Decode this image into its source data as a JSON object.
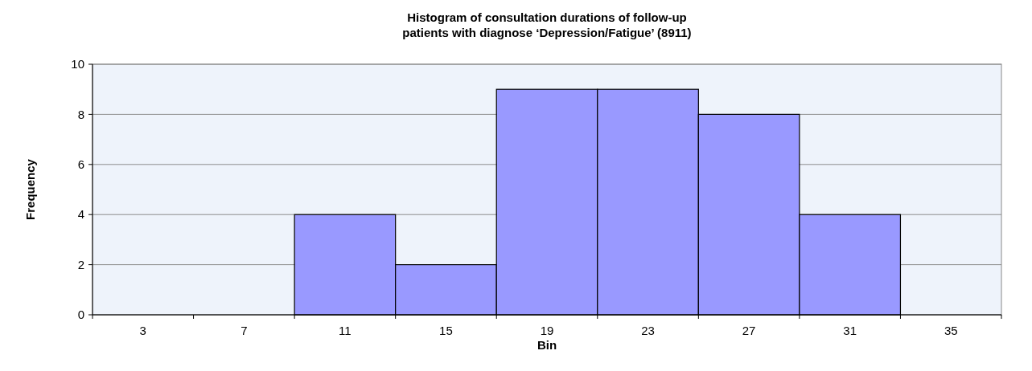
{
  "chart_data": {
    "type": "bar",
    "title": "Histogram of consultation durations of follow-up\npatients with diagnose ‘Depression/Fatigue’ (8911)",
    "xlabel": "Bin",
    "ylabel": "Frequency",
    "categories": [
      "3",
      "7",
      "11",
      "15",
      "19",
      "23",
      "27",
      "31",
      "35"
    ],
    "values": [
      0,
      0,
      4,
      2,
      9,
      9,
      8,
      4,
      0
    ],
    "color": "#9999ff",
    "ylim": [
      0,
      10
    ],
    "yticks": [
      0,
      2,
      4,
      6,
      8,
      10
    ],
    "grid": "y"
  }
}
